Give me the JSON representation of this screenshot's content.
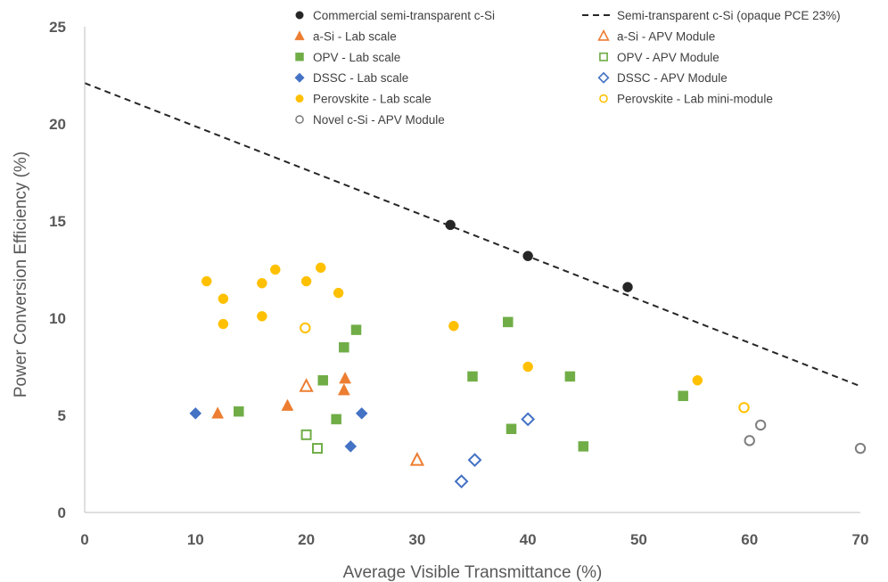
{
  "chart_data": {
    "type": "scatter",
    "title": "",
    "xlabel": "Average Visible Transmittance (%)",
    "ylabel": "Power Conversion Efficiency (%)",
    "xlim": [
      0,
      70
    ],
    "ylim": [
      0,
      25
    ],
    "xticks": [
      0,
      10,
      20,
      30,
      40,
      50,
      60,
      70
    ],
    "yticks": [
      0,
      5,
      10,
      15,
      20,
      25
    ],
    "grid": false,
    "legend_position": "top-right",
    "series": [
      {
        "name": "Commercial semi-transparent c-Si",
        "marker": "circle",
        "filled": true,
        "color": "#262626",
        "points": [
          [
            33,
            14.8
          ],
          [
            40,
            13.2
          ],
          [
            49,
            11.6
          ]
        ]
      },
      {
        "name": "a-Si - Lab scale",
        "marker": "triangle",
        "filled": true,
        "color": "#ED7D31",
        "points": [
          [
            12,
            5.1
          ],
          [
            18.3,
            5.5
          ],
          [
            23.5,
            6.9
          ],
          [
            23.4,
            6.3
          ]
        ]
      },
      {
        "name": "OPV - Lab scale",
        "marker": "square",
        "filled": true,
        "color": "#70AD47",
        "points": [
          [
            13.9,
            5.2
          ],
          [
            21.5,
            6.8
          ],
          [
            22.7,
            4.8
          ],
          [
            23.4,
            8.5
          ],
          [
            24.5,
            9.4
          ],
          [
            35,
            7.0
          ],
          [
            38.2,
            9.8
          ],
          [
            38.5,
            4.3
          ],
          [
            43.8,
            7.0
          ],
          [
            45,
            3.4
          ],
          [
            54,
            6.0
          ]
        ]
      },
      {
        "name": "DSSC - Lab scale",
        "marker": "diamond",
        "filled": true,
        "color": "#4472C4",
        "points": [
          [
            10,
            5.1
          ],
          [
            24,
            3.4
          ],
          [
            25,
            5.1
          ]
        ]
      },
      {
        "name": "Perovskite - Lab scale",
        "marker": "circle",
        "filled": true,
        "color": "#FFC000",
        "points": [
          [
            11,
            11.9
          ],
          [
            12.5,
            11.0
          ],
          [
            12.5,
            9.7
          ],
          [
            16,
            11.8
          ],
          [
            16,
            10.1
          ],
          [
            17.2,
            12.5
          ],
          [
            20,
            11.9
          ],
          [
            21.3,
            12.6
          ],
          [
            22.9,
            11.3
          ],
          [
            33.3,
            9.6
          ],
          [
            40,
            7.5
          ],
          [
            55.3,
            6.8
          ]
        ]
      },
      {
        "name": "Novel c-Si - APV Module",
        "marker": "circle",
        "filled": false,
        "color": "#7F7F7F",
        "points": [
          [
            60,
            3.7
          ],
          [
            61,
            4.5
          ],
          [
            70,
            3.3
          ]
        ]
      },
      {
        "name": "Semi-transparent c-Si (opaque PCE 23%)",
        "marker": "dashed-line",
        "filled": false,
        "color": "#262626",
        "points": [
          [
            0,
            22.1
          ],
          [
            70,
            6.5
          ]
        ]
      },
      {
        "name": "a-Si - APV Module",
        "marker": "triangle",
        "filled": false,
        "color": "#ED7D31",
        "points": [
          [
            20,
            6.5
          ],
          [
            30,
            2.7
          ]
        ]
      },
      {
        "name": "OPV - APV Module",
        "marker": "square",
        "filled": false,
        "color": "#70AD47",
        "points": [
          [
            20,
            4.0
          ],
          [
            21,
            3.3
          ]
        ]
      },
      {
        "name": "DSSC - APV Module",
        "marker": "diamond",
        "filled": false,
        "color": "#4472C4",
        "points": [
          [
            34,
            1.6
          ],
          [
            35.2,
            2.7
          ],
          [
            40,
            4.8
          ]
        ]
      },
      {
        "name": "Perovskite - Lab mini-module",
        "marker": "circle",
        "filled": false,
        "color": "#FFC000",
        "points": [
          [
            19.9,
            9.5
          ],
          [
            59.5,
            5.4
          ]
        ]
      }
    ]
  }
}
